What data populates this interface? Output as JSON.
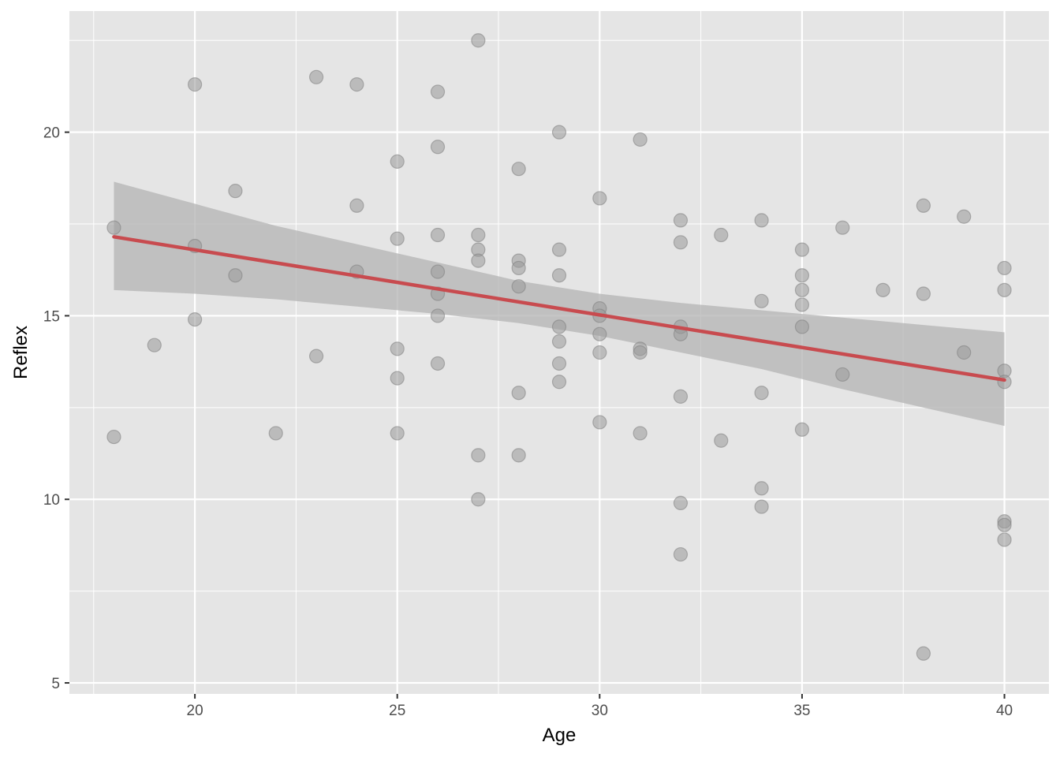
{
  "chart_data": {
    "type": "scatter",
    "title": "",
    "xlabel": "Age",
    "ylabel": "Reflex",
    "xlim": [
      16.9,
      41.1
    ],
    "ylim": [
      4.7,
      23.3
    ],
    "x_ticks": [
      20,
      25,
      30,
      35,
      40
    ],
    "y_ticks": [
      5,
      10,
      15,
      20
    ],
    "x_tick_labels": [
      "20",
      "25",
      "30",
      "35",
      "40"
    ],
    "y_tick_labels": [
      "5",
      "10",
      "15",
      "20"
    ],
    "grid": true,
    "legend": "none",
    "colors": {
      "panel": "#e5e5e5",
      "grid": "#ffffff",
      "points": "#999999",
      "fit_line": "#c84b4f",
      "confidence_band": "#b3b3b3"
    },
    "points": [
      {
        "x": 18,
        "y": 17.4
      },
      {
        "x": 18,
        "y": 11.7
      },
      {
        "x": 19,
        "y": 14.2
      },
      {
        "x": 20,
        "y": 21.3
      },
      {
        "x": 20,
        "y": 16.9
      },
      {
        "x": 20,
        "y": 14.9
      },
      {
        "x": 21,
        "y": 18.4
      },
      {
        "x": 21,
        "y": 16.1
      },
      {
        "x": 22,
        "y": 11.8
      },
      {
        "x": 23,
        "y": 21.5
      },
      {
        "x": 23,
        "y": 13.9
      },
      {
        "x": 24,
        "y": 21.3
      },
      {
        "x": 24,
        "y": 18.0
      },
      {
        "x": 24,
        "y": 16.2
      },
      {
        "x": 25,
        "y": 19.2
      },
      {
        "x": 25,
        "y": 17.1
      },
      {
        "x": 25,
        "y": 14.1
      },
      {
        "x": 25,
        "y": 13.3
      },
      {
        "x": 25,
        "y": 11.8
      },
      {
        "x": 26,
        "y": 21.1
      },
      {
        "x": 26,
        "y": 19.6
      },
      {
        "x": 26,
        "y": 17.2
      },
      {
        "x": 26,
        "y": 16.2
      },
      {
        "x": 26,
        "y": 15.6
      },
      {
        "x": 26,
        "y": 15.0
      },
      {
        "x": 26,
        "y": 13.7
      },
      {
        "x": 27,
        "y": 22.5
      },
      {
        "x": 27,
        "y": 17.2
      },
      {
        "x": 27,
        "y": 16.8
      },
      {
        "x": 27,
        "y": 16.5
      },
      {
        "x": 27,
        "y": 11.2
      },
      {
        "x": 27,
        "y": 10.0
      },
      {
        "x": 28,
        "y": 19.0
      },
      {
        "x": 28,
        "y": 16.5
      },
      {
        "x": 28,
        "y": 16.3
      },
      {
        "x": 28,
        "y": 15.8
      },
      {
        "x": 28,
        "y": 12.9
      },
      {
        "x": 28,
        "y": 11.2
      },
      {
        "x": 29,
        "y": 20.0
      },
      {
        "x": 29,
        "y": 16.8
      },
      {
        "x": 29,
        "y": 16.1
      },
      {
        "x": 29,
        "y": 14.7
      },
      {
        "x": 29,
        "y": 14.3
      },
      {
        "x": 29,
        "y": 13.7
      },
      {
        "x": 29,
        "y": 13.2
      },
      {
        "x": 30,
        "y": 18.2
      },
      {
        "x": 30,
        "y": 15.2
      },
      {
        "x": 30,
        "y": 15.0
      },
      {
        "x": 30,
        "y": 14.5
      },
      {
        "x": 30,
        "y": 14.0
      },
      {
        "x": 30,
        "y": 12.1
      },
      {
        "x": 31,
        "y": 19.8
      },
      {
        "x": 31,
        "y": 14.1
      },
      {
        "x": 31,
        "y": 14.0
      },
      {
        "x": 31,
        "y": 11.8
      },
      {
        "x": 32,
        "y": 17.6
      },
      {
        "x": 32,
        "y": 17.0
      },
      {
        "x": 32,
        "y": 14.7
      },
      {
        "x": 32,
        "y": 14.5
      },
      {
        "x": 32,
        "y": 12.8
      },
      {
        "x": 32,
        "y": 9.9
      },
      {
        "x": 32,
        "y": 8.5
      },
      {
        "x": 33,
        "y": 17.2
      },
      {
        "x": 33,
        "y": 11.6
      },
      {
        "x": 34,
        "y": 17.6
      },
      {
        "x": 34,
        "y": 15.4
      },
      {
        "x": 34,
        "y": 12.9
      },
      {
        "x": 34,
        "y": 10.3
      },
      {
        "x": 34,
        "y": 9.8
      },
      {
        "x": 35,
        "y": 16.8
      },
      {
        "x": 35,
        "y": 16.1
      },
      {
        "x": 35,
        "y": 15.7
      },
      {
        "x": 35,
        "y": 15.3
      },
      {
        "x": 35,
        "y": 14.7
      },
      {
        "x": 35,
        "y": 11.9
      },
      {
        "x": 36,
        "y": 17.4
      },
      {
        "x": 36,
        "y": 13.4
      },
      {
        "x": 37,
        "y": 15.7
      },
      {
        "x": 38,
        "y": 18.0
      },
      {
        "x": 38,
        "y": 15.6
      },
      {
        "x": 38,
        "y": 5.8
      },
      {
        "x": 39,
        "y": 17.7
      },
      {
        "x": 39,
        "y": 14.0
      },
      {
        "x": 40,
        "y": 16.3
      },
      {
        "x": 40,
        "y": 15.7
      },
      {
        "x": 40,
        "y": 13.5
      },
      {
        "x": 40,
        "y": 13.2
      },
      {
        "x": 40,
        "y": 9.4
      },
      {
        "x": 40,
        "y": 9.3
      },
      {
        "x": 40,
        "y": 8.9
      }
    ],
    "fit_line": {
      "x": [
        18,
        40
      ],
      "y": [
        17.15,
        13.25
      ]
    },
    "confidence_band": {
      "x": [
        18,
        20,
        22,
        24,
        26,
        28,
        30,
        32,
        34,
        36,
        38,
        40
      ],
      "upper": [
        18.65,
        18.05,
        17.45,
        16.95,
        16.45,
        15.95,
        15.6,
        15.35,
        15.15,
        14.95,
        14.75,
        14.55
      ],
      "lower": [
        15.7,
        15.6,
        15.45,
        15.25,
        15.05,
        14.8,
        14.45,
        14.0,
        13.55,
        13.0,
        12.5,
        12.0
      ]
    }
  }
}
